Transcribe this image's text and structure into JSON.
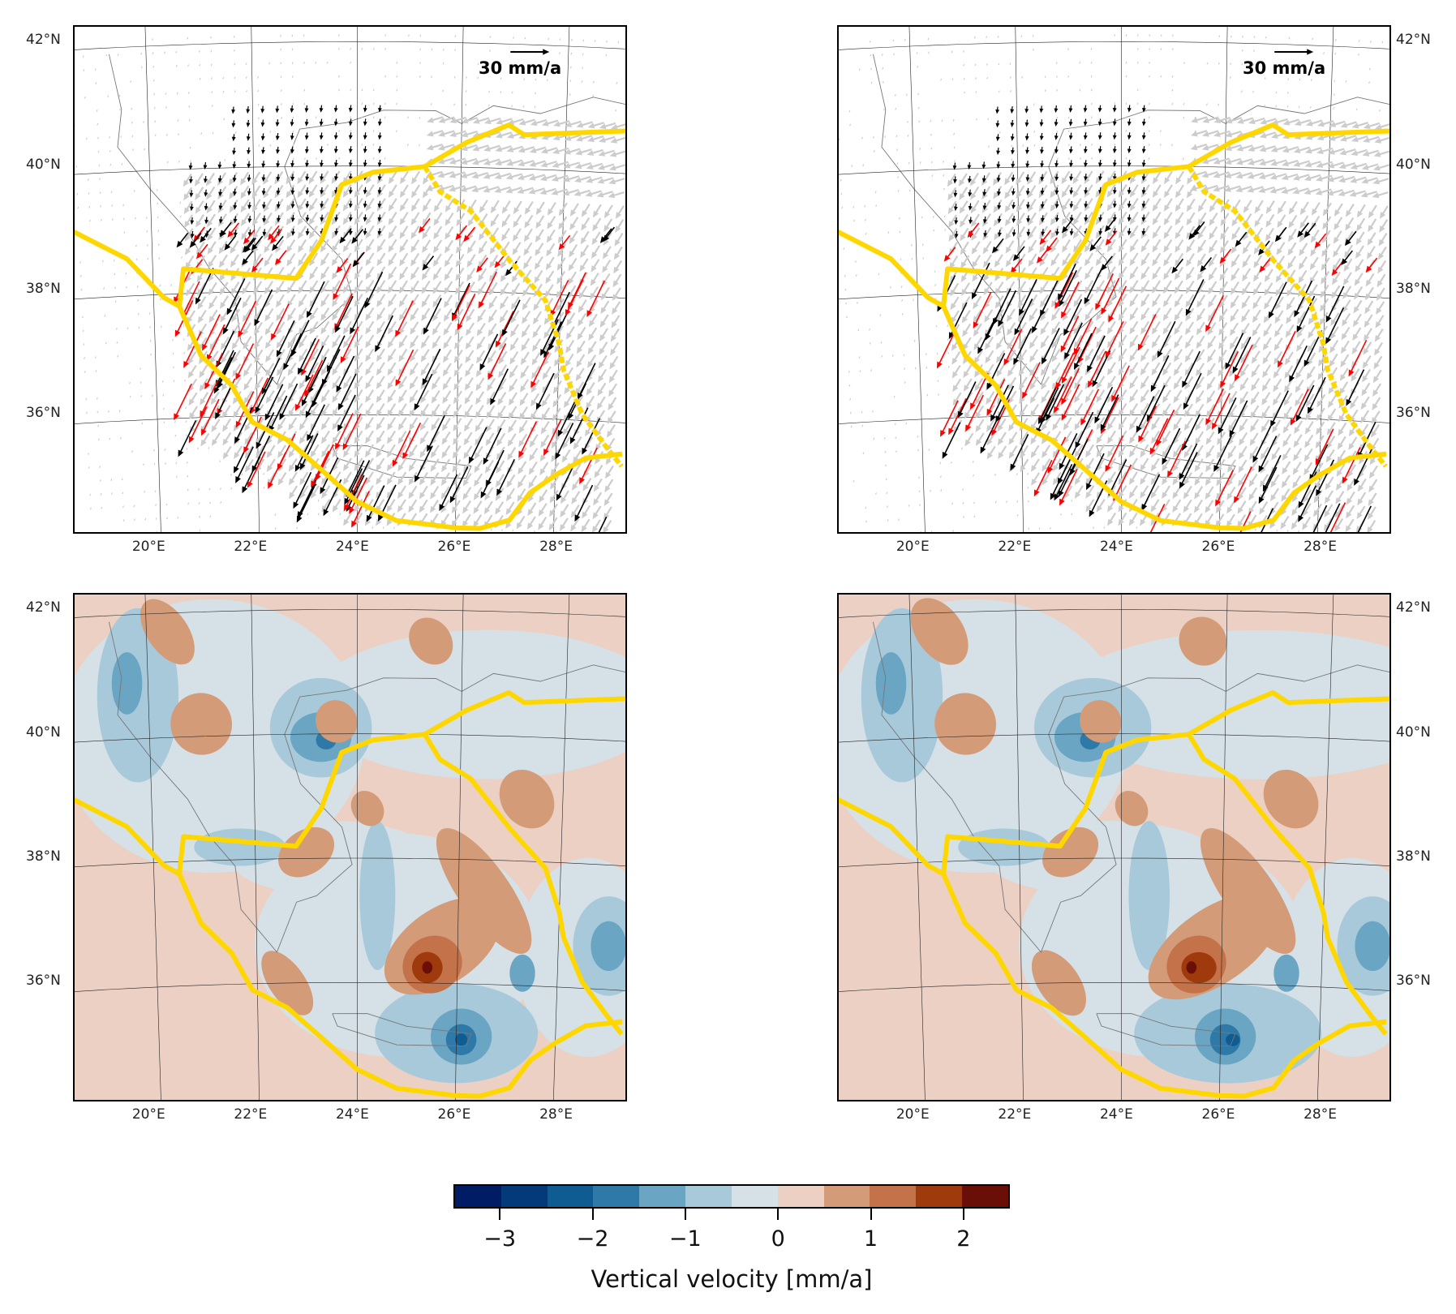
{
  "panels": [
    {
      "id": "top-left",
      "type": "velocity",
      "scale_label": "30 mm/a",
      "lat_side": "left"
    },
    {
      "id": "top-right",
      "type": "velocity",
      "scale_label": "30 mm/a",
      "lat_side": "right"
    },
    {
      "id": "bottom-left",
      "type": "vertical",
      "lat_side": "left"
    },
    {
      "id": "bottom-right",
      "type": "vertical",
      "lat_side": "right"
    }
  ],
  "lat_labels": [
    "42°N",
    "40°N",
    "38°N",
    "36°N"
  ],
  "lat_values": [
    42,
    40,
    38,
    36
  ],
  "lon_labels": [
    "20°E",
    "22°E",
    "24°E",
    "26°E",
    "28°E"
  ],
  "lon_values": [
    20,
    22,
    24,
    26,
    28
  ],
  "colors": {
    "boundary": "#ffd700",
    "grey_vec": "#cccccc",
    "obs_vec": "#000000",
    "model_vec": "#ff0000"
  },
  "colorbar": {
    "title": "Vertical velocity [mm/a]",
    "range": [
      -3.5,
      2.5
    ],
    "ticks": [
      -3,
      -2,
      -1,
      0,
      1,
      2
    ],
    "tick_labels": [
      "−3",
      "−2",
      "−1",
      "0",
      "1",
      "2"
    ],
    "colors": [
      "#001c64",
      "#053a7a",
      "#0e5c92",
      "#2f79a8",
      "#6aa5c4",
      "#a8c9da",
      "#d5e1e7",
      "#ebd0c3",
      "#d49b78",
      "#c4724a",
      "#9e3a0c",
      "#6a0f08"
    ]
  }
}
